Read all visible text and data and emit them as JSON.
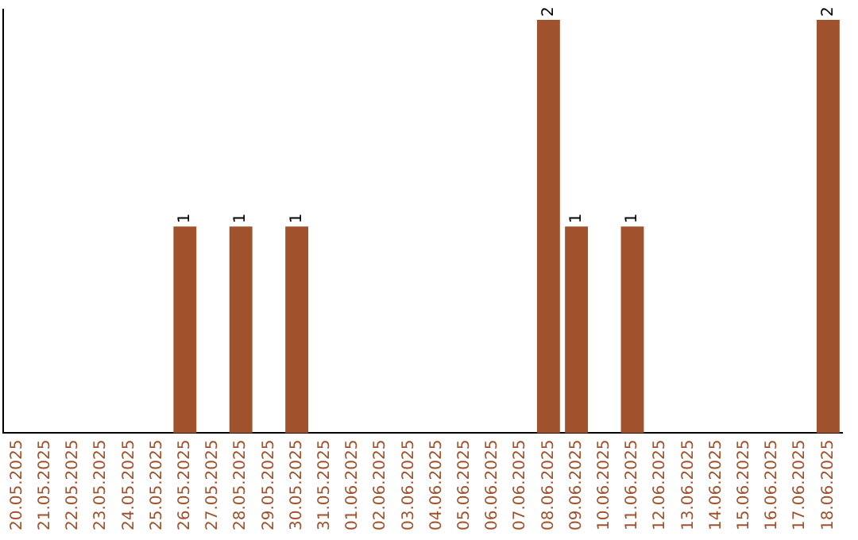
{
  "chart_data": {
    "type": "bar",
    "categories": [
      "20.05.2025",
      "21.05.2025",
      "22.05.2025",
      "23.05.2025",
      "24.05.2025",
      "25.05.2025",
      "26.05.2025",
      "27.05.2025",
      "28.05.2025",
      "29.05.2025",
      "30.05.2025",
      "31.05.2025",
      "01.06.2025",
      "02.06.2025",
      "03.06.2025",
      "04.06.2025",
      "05.06.2025",
      "06.06.2025",
      "07.06.2025",
      "08.06.2025",
      "09.06.2025",
      "10.06.2025",
      "11.06.2025",
      "12.06.2025",
      "13.06.2025",
      "14.06.2025",
      "15.06.2025",
      "16.06.2025",
      "17.06.2025",
      "18.06.2025"
    ],
    "values": [
      0,
      0,
      0,
      0,
      0,
      0,
      1,
      0,
      1,
      0,
      1,
      0,
      0,
      0,
      0,
      0,
      0,
      0,
      0,
      2,
      1,
      0,
      1,
      0,
      0,
      0,
      0,
      0,
      0,
      2
    ],
    "color": "#a0522d",
    "ylim": [
      0,
      2.05
    ],
    "value_labels": [
      null,
      null,
      null,
      null,
      null,
      null,
      "1",
      null,
      "1",
      null,
      "1",
      null,
      null,
      null,
      null,
      null,
      null,
      null,
      null,
      "2",
      "1",
      null,
      "1",
      null,
      null,
      null,
      null,
      null,
      null,
      "2"
    ],
    "tick_labels": "x",
    "grid": false,
    "legend": false
  }
}
